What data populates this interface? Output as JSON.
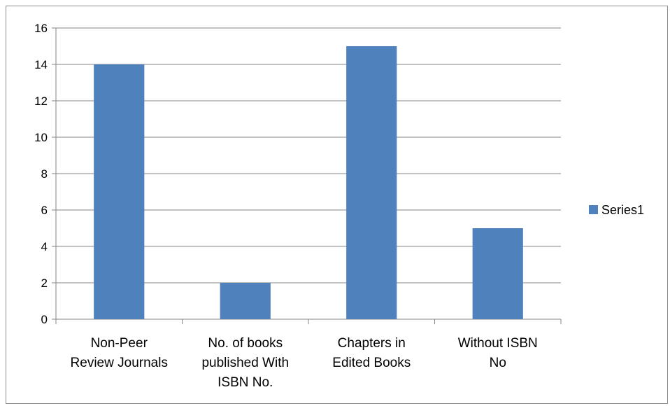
{
  "chart_data": {
    "type": "bar",
    "categories": [
      [
        "Non-Peer",
        "Review Journals"
      ],
      [
        "No. of books",
        "published With",
        "ISBN No."
      ],
      [
        "Chapters in",
        "Edited Books"
      ],
      [
        "Without ISBN",
        "No"
      ]
    ],
    "series": [
      {
        "name": "Series1",
        "values": [
          14,
          2,
          15,
          5
        ],
        "color": "#4f81bd"
      }
    ],
    "ylim": [
      0,
      16
    ],
    "yticks": [
      0,
      2,
      4,
      6,
      8,
      10,
      12,
      14,
      16
    ],
    "grid": true,
    "legend_position": "right",
    "title": "",
    "xlabel": "",
    "ylabel": ""
  }
}
